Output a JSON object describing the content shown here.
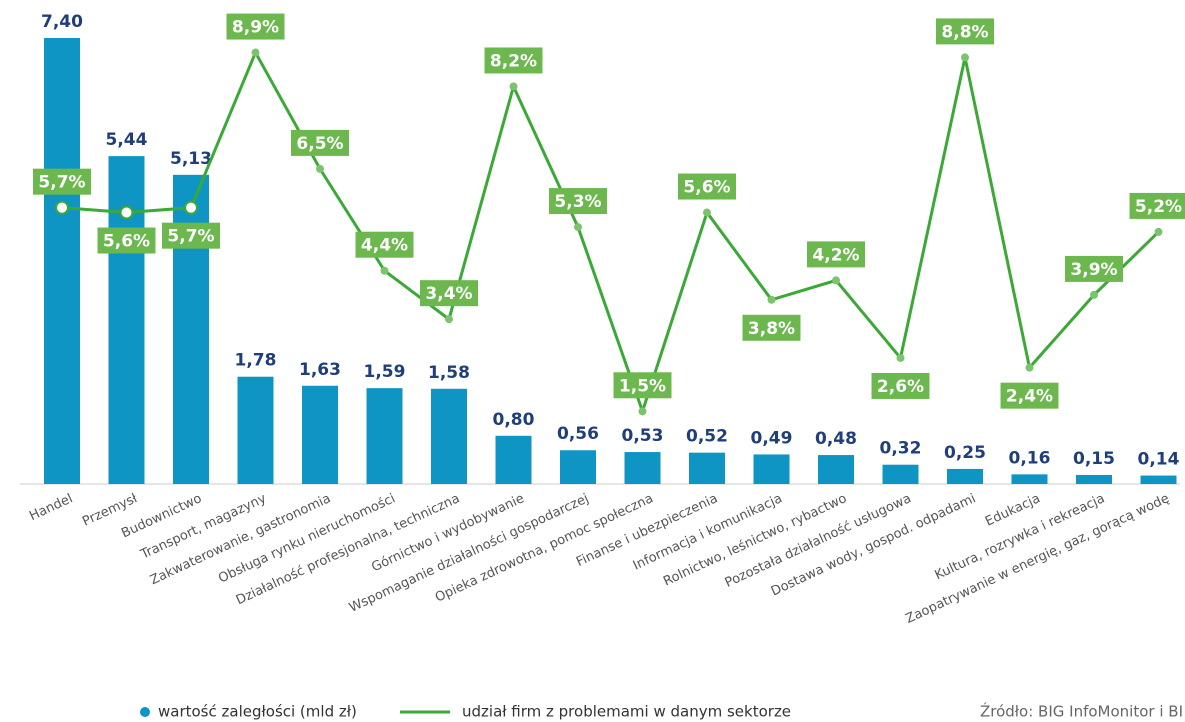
{
  "chart_data": {
    "type": "bar",
    "categories": [
      "Handel",
      "Przemysł",
      "Budownictwo",
      "Transport, magazyny",
      "Zakwaterowanie, gastronomia",
      "Obsługa rynku nieruchomości",
      "Działalność profesjonalna, techniczna",
      "Górnictwo i wydobywanie",
      "Wspomaganie działalności gospodarczej",
      "Opieka zdrowotna, pomoc społeczna",
      "Finanse i ubezpieczenia",
      "Informacja i komunikacja",
      "Rolnictwo, leśnictwo, rybactwo",
      "Pozostała działalność usługowa",
      "Dostawa wody, gospod. odpadami",
      "Edukacja",
      "Kultura, rozrywka i rekreacja",
      "Zaopatrywanie w energię, gaz, gorącą wodę"
    ],
    "series": [
      {
        "name": "wartość zaległości (mld zł)",
        "type": "bar",
        "color": "#0e95c4",
        "values": [
          7.4,
          5.44,
          5.13,
          1.78,
          1.63,
          1.59,
          1.58,
          0.8,
          0.56,
          0.53,
          0.52,
          0.49,
          0.48,
          0.32,
          0.25,
          0.16,
          0.15,
          0.14
        ],
        "value_labels": [
          "7,40",
          "5,44",
          "5,13",
          "1,78",
          "1,63",
          "1,59",
          "1,58",
          "0,80",
          "0,56",
          "0,53",
          "0,52",
          "0,49",
          "0,48",
          "0,32",
          "0,25",
          "0,16",
          "0,15",
          "0,14"
        ]
      },
      {
        "name": "udział firm z problemami w danym sektorze",
        "type": "line",
        "axis": "y2",
        "color": "#3aa935",
        "values": [
          5.7,
          5.6,
          5.7,
          8.9,
          6.5,
          4.4,
          3.4,
          8.2,
          5.3,
          1.5,
          5.6,
          3.8,
          4.2,
          2.6,
          8.8,
          2.4,
          3.9,
          5.2
        ],
        "value_labels": [
          "5,7%",
          "5,6%",
          "5,7%",
          "8,9%",
          "6,5%",
          "4,4%",
          "3,4%",
          "8,2%",
          "5,3%",
          "1,5%",
          "5,6%",
          "3,8%",
          "4,2%",
          "2,6%",
          "8,8%",
          "2,4%",
          "3,9%",
          "5,2%"
        ]
      }
    ],
    "ylim": [
      0,
      7.4
    ],
    "y2lim": [
      0,
      9.2
    ],
    "source": "Źródło: BIG InfoMonitor i BI"
  }
}
